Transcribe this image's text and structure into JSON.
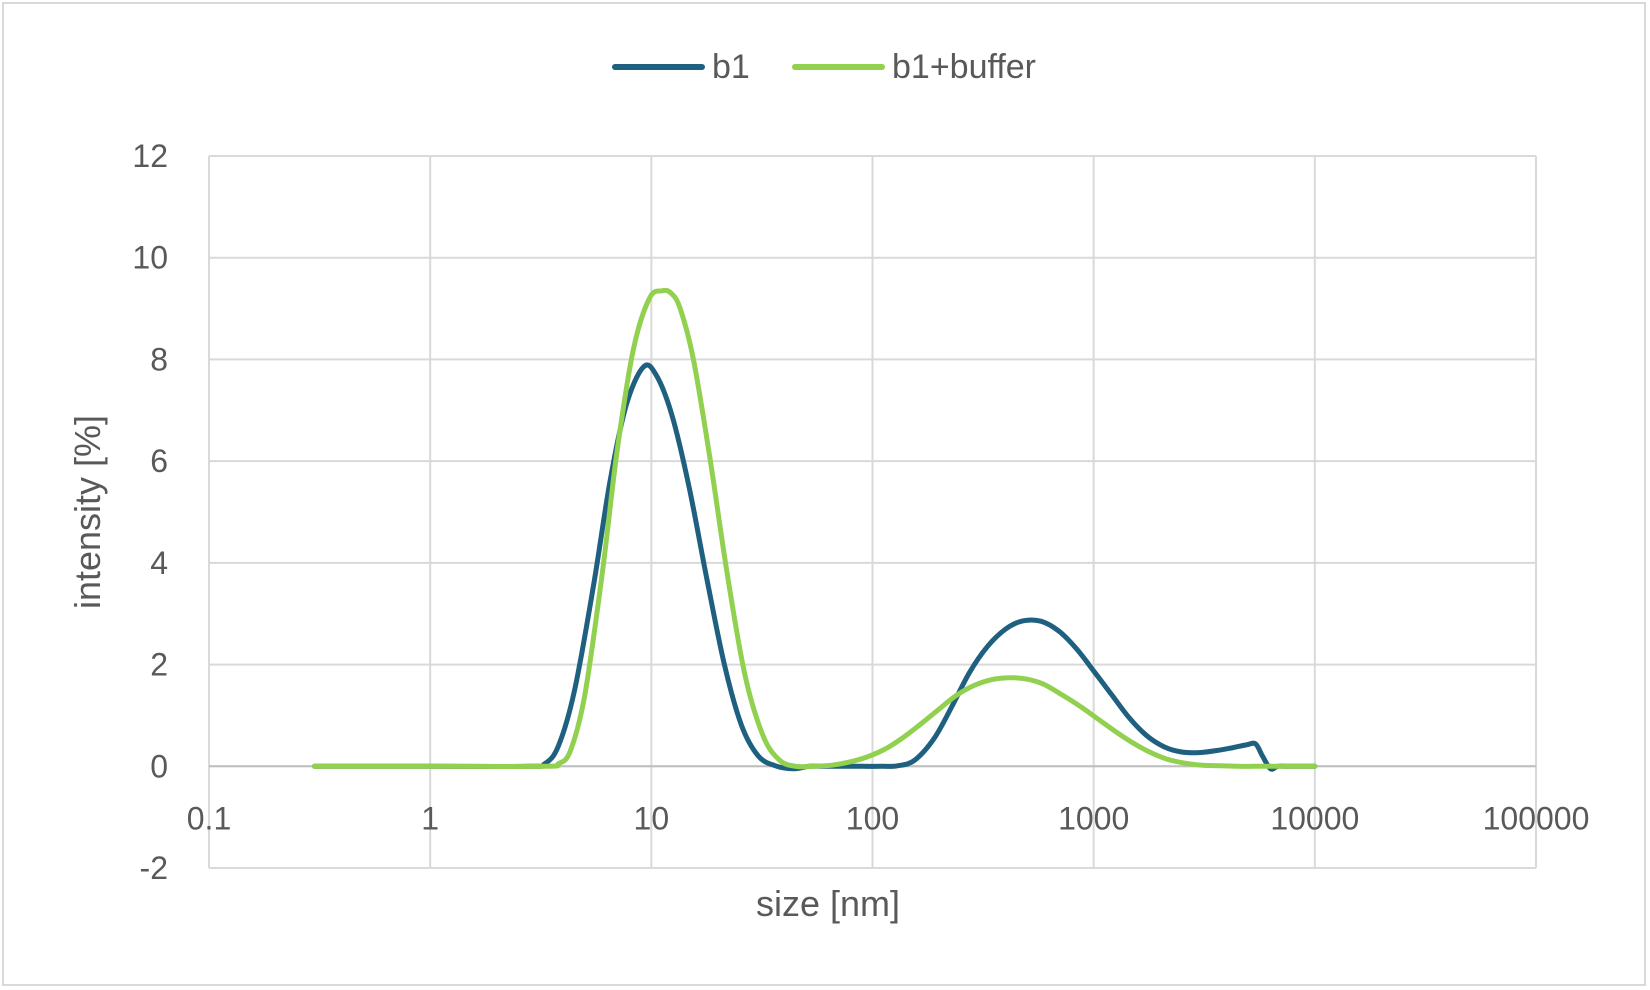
{
  "chart_data": {
    "type": "line",
    "xlabel": "size [nm]",
    "ylabel": "intensity [%]",
    "x_scale": "log",
    "xlim": [
      0.1,
      100000
    ],
    "ylim": [
      -2,
      12
    ],
    "y_ticks": [
      -2,
      0,
      2,
      4,
      6,
      8,
      10,
      12
    ],
    "x_ticks": [
      0.1,
      1,
      10,
      100,
      1000,
      10000,
      100000
    ],
    "x_tick_labels": [
      "0.1",
      "1",
      "10",
      "100",
      "1000",
      "10000",
      "100000"
    ],
    "y_tick_labels": [
      "-2",
      "0",
      "2",
      "4",
      "6",
      "8",
      "10",
      "12"
    ],
    "grid": true,
    "legend_position": "top-center",
    "series": [
      {
        "name": "b1",
        "color": "#1f5f7f",
        "x": [
          0.3,
          1,
          2.8,
          3.3,
          3.8,
          4.5,
          5.5,
          6.5,
          7.7,
          9.2,
          10.5,
          12.4,
          14.8,
          17.8,
          21.4,
          25.6,
          30.5,
          36.4,
          43.6,
          52,
          62,
          75,
          90,
          110,
          130,
          155,
          190,
          230,
          275,
          330,
          400,
          480,
          580,
          700,
          840,
          1010,
          1210,
          1450,
          1740,
          2090,
          2500,
          3000,
          3600,
          4300,
          4900,
          5400,
          5800,
          6300,
          6800,
          7500,
          10000
        ],
        "values": [
          0,
          0,
          0,
          0.05,
          0.4,
          1.5,
          3.6,
          5.6,
          7.1,
          7.85,
          7.7,
          6.9,
          5.5,
          3.7,
          2.0,
          0.8,
          0.2,
          0.01,
          -0.05,
          0,
          0,
          0,
          0,
          0,
          0.01,
          0.12,
          0.55,
          1.2,
          1.85,
          2.35,
          2.7,
          2.86,
          2.85,
          2.65,
          2.3,
          1.85,
          1.4,
          0.95,
          0.6,
          0.38,
          0.28,
          0.27,
          0.31,
          0.37,
          0.42,
          0.44,
          0.2,
          -0.05,
          0,
          0,
          0
        ]
      },
      {
        "name": "b1+buffer",
        "color": "#92d050",
        "x": [
          0.3,
          1,
          3.3,
          3.8,
          4.3,
          5.0,
          6.0,
          7.0,
          8.3,
          9.8,
          11.2,
          12.3,
          13.5,
          15.5,
          18.5,
          22,
          26.5,
          32,
          38,
          45,
          54,
          65,
          78,
          94,
          113,
          136,
          164,
          197,
          237,
          285,
          343,
          412,
          490,
          590,
          710,
          855,
          1030,
          1240,
          1490,
          1790,
          2150,
          2590,
          3110,
          3740,
          4500,
          5400,
          6500,
          10000
        ],
        "values": [
          0,
          0,
          0,
          0.05,
          0.3,
          1.4,
          3.8,
          6.2,
          8.2,
          9.2,
          9.35,
          9.3,
          9.0,
          8.0,
          6.0,
          3.8,
          1.8,
          0.6,
          0.12,
          0.0,
          0.0,
          0.02,
          0.08,
          0.18,
          0.33,
          0.55,
          0.82,
          1.1,
          1.38,
          1.58,
          1.7,
          1.74,
          1.72,
          1.62,
          1.42,
          1.2,
          0.95,
          0.7,
          0.47,
          0.28,
          0.14,
          0.06,
          0.02,
          0.01,
          0,
          0,
          0,
          0
        ]
      }
    ]
  }
}
